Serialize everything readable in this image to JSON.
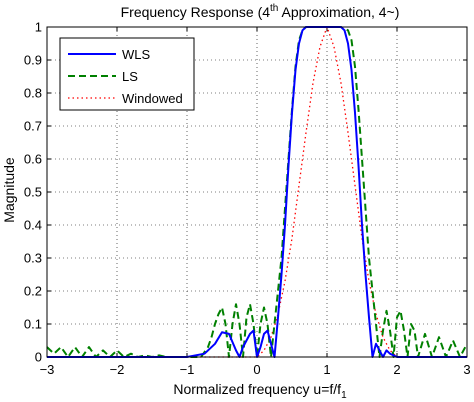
{
  "chart_data": {
    "type": "line",
    "title_main": "Frequency Response (4",
    "title_sup": "th",
    "title_rest": " Approximation, 4~)",
    "xlabel_main": "Normalized frequency u=f/f",
    "xlabel_sub": "1",
    "ylabel": "Magnitude",
    "xlim": [
      -3,
      3
    ],
    "ylim": [
      0,
      1
    ],
    "xticks": [
      -3,
      -2,
      -1,
      0,
      1,
      2,
      3
    ],
    "xtick_labels": [
      "−3",
      "−2",
      "−1",
      "0",
      "1",
      "2",
      "3"
    ],
    "yticks": [
      0,
      0.1,
      0.2,
      0.3,
      0.4,
      0.5,
      0.6,
      0.7,
      0.8,
      0.9,
      1
    ],
    "ytick_labels": [
      "0",
      "0.1",
      "0.2",
      "0.3",
      "0.4",
      "0.5",
      "0.6",
      "0.7",
      "0.8",
      "0.9",
      "1"
    ],
    "grid": true,
    "legend_position": "top-left",
    "series": [
      {
        "name": "WLS",
        "color": "#0000ff",
        "style": "solid",
        "x": [
          -3,
          -2.5,
          -2.0,
          -1.5,
          -1.0,
          -0.75,
          -0.6,
          -0.5,
          -0.4,
          -0.3,
          -0.25,
          -0.2,
          -0.1,
          -0.05,
          0,
          0.05,
          0.1,
          0.15,
          0.2,
          0.25,
          0.3,
          0.35,
          0.4,
          0.45,
          0.5,
          0.55,
          0.6,
          0.65,
          0.7,
          0.75,
          0.8,
          0.85,
          0.9,
          1.0,
          1.1,
          1.15,
          1.2,
          1.25,
          1.3,
          1.35,
          1.4,
          1.45,
          1.5,
          1.55,
          1.6,
          1.65,
          1.7,
          1.75,
          1.8,
          1.85,
          1.9,
          2.0,
          2.1,
          2.2,
          2.5,
          3
        ],
        "y": [
          0.0,
          0.0,
          0.0,
          0.0,
          0.0,
          0.01,
          0.04,
          0.075,
          0.07,
          0.02,
          0.0,
          0.03,
          0.07,
          0.08,
          0.0,
          0.03,
          0.07,
          0.08,
          0.04,
          0.0,
          0.12,
          0.25,
          0.4,
          0.58,
          0.74,
          0.87,
          0.95,
          0.99,
          1.0,
          1.0,
          1.0,
          1.0,
          1.0,
          1.0,
          1.0,
          1.0,
          1.0,
          0.99,
          0.95,
          0.87,
          0.74,
          0.58,
          0.4,
          0.25,
          0.12,
          0.0,
          0.04,
          0.02,
          0.0,
          0.02,
          0.01,
          0.0,
          0.0,
          0.0,
          0.0,
          0.0
        ]
      },
      {
        "name": "LS",
        "color": "#008000",
        "style": "dashed",
        "x": [
          -3,
          -2.9,
          -2.8,
          -2.7,
          -2.6,
          -2.5,
          -2.4,
          -2.3,
          -2.2,
          -2.1,
          -2.0,
          -1.9,
          -1.8,
          -1.7,
          -1.6,
          -1.5,
          -1.4,
          -1.3,
          -1.2,
          -1.1,
          -1.0,
          -0.9,
          -0.8,
          -0.7,
          -0.65,
          -0.6,
          -0.55,
          -0.5,
          -0.45,
          -0.4,
          -0.35,
          -0.3,
          -0.25,
          -0.2,
          -0.15,
          -0.1,
          -0.05,
          0,
          0.05,
          0.1,
          0.15,
          0.2,
          0.25,
          0.3,
          0.35,
          0.4,
          0.45,
          0.5,
          0.55,
          0.6,
          0.65,
          0.7,
          0.8,
          0.9,
          1.0,
          1.1,
          1.2,
          1.3,
          1.35,
          1.4,
          1.45,
          1.5,
          1.55,
          1.6,
          1.65,
          1.7,
          1.75,
          1.8,
          1.85,
          1.9,
          1.95,
          2.0,
          2.05,
          2.1,
          2.15,
          2.2,
          2.25,
          2.3,
          2.4,
          2.5,
          2.6,
          2.7,
          2.8,
          2.9,
          3
        ],
        "y": [
          0.03,
          0.01,
          0.03,
          0.0,
          0.03,
          0.0,
          0.03,
          0.0,
          0.02,
          0.0,
          0.02,
          0.0,
          0.01,
          0.0,
          0.005,
          0.0,
          0.005,
          0.0,
          0.0,
          0.0,
          0.0,
          0.0,
          0.0,
          0.03,
          0.06,
          0.1,
          0.13,
          0.15,
          0.1,
          0.0,
          0.1,
          0.16,
          0.1,
          0.0,
          0.12,
          0.16,
          0.1,
          0.0,
          0.1,
          0.15,
          0.1,
          0.0,
          0.1,
          0.2,
          0.3,
          0.45,
          0.6,
          0.75,
          0.88,
          0.96,
          0.99,
          1.0,
          1.0,
          1.0,
          1.0,
          1.0,
          1.0,
          0.99,
          0.96,
          0.88,
          0.75,
          0.6,
          0.45,
          0.3,
          0.2,
          0.1,
          0.0,
          0.08,
          0.14,
          0.08,
          0.0,
          0.12,
          0.14,
          0.08,
          0.0,
          0.1,
          0.08,
          0.0,
          0.07,
          0.0,
          0.06,
          0.0,
          0.05,
          0.0,
          0.04
        ]
      },
      {
        "name": "Windowed",
        "color": "#ff0000",
        "style": "dotted",
        "x": [
          -3,
          -2.5,
          -2.0,
          -1.5,
          -1.0,
          -0.5,
          -0.2,
          0,
          0.1,
          0.2,
          0.3,
          0.4,
          0.5,
          0.6,
          0.7,
          0.8,
          0.9,
          1.0,
          1.1,
          1.2,
          1.3,
          1.4,
          1.5,
          1.6,
          1.7,
          1.8,
          1.9,
          2.0,
          2.5,
          3
        ],
        "y": [
          0.0,
          0.0,
          0.0,
          0.0,
          0.0,
          0.0,
          0.0,
          0.0,
          0.02,
          0.06,
          0.13,
          0.23,
          0.36,
          0.52,
          0.68,
          0.83,
          0.94,
          1.0,
          0.94,
          0.83,
          0.68,
          0.52,
          0.36,
          0.23,
          0.13,
          0.06,
          0.02,
          0.0,
          0.0,
          0.0
        ]
      }
    ]
  }
}
